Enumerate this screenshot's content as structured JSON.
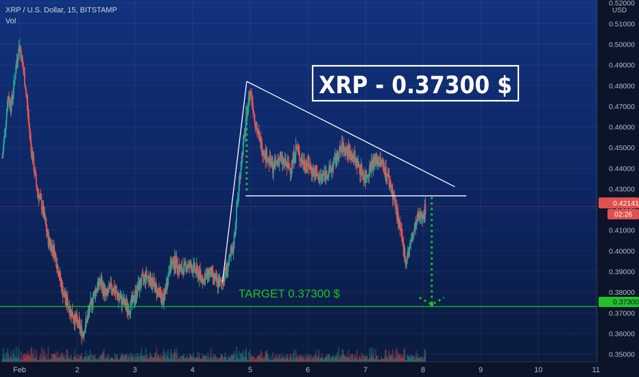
{
  "header": {
    "symbol_line": "XRP / U.S. Dollar, 15, BITSTAMP",
    "volume_label": "Vol"
  },
  "currency": "USD",
  "title_box": "XRP - 0.37300 $",
  "target_label": "TARGET 0.37300 $",
  "price_marker": {
    "value": "0.42141",
    "countdown": "02:26",
    "color": "#e0514e"
  },
  "target_marker": {
    "value": "0.37300",
    "color": "#22c02a"
  },
  "colors": {
    "up": "#26a69a",
    "down": "#ef5350",
    "target": "#22c02a",
    "annotation": "#ffffff"
  },
  "chart_data": {
    "type": "candlestick",
    "symbol": "XRP / U.S. Dollar",
    "interval": "15",
    "exchange": "BITSTAMP",
    "x_ticks": [
      "Feb",
      "2",
      "3",
      "4",
      "5",
      "6",
      "7",
      "8",
      "9",
      "10",
      "11"
    ],
    "y_ticks": [
      "0.35000",
      "0.36000",
      "0.37000",
      "0.38000",
      "0.39000",
      "0.40000",
      "0.41000",
      "0.42000",
      "0.43000",
      "0.44000",
      "0.45000",
      "0.46000",
      "0.47000",
      "0.48000",
      "0.49000",
      "0.50000",
      "0.51000",
      "0.52000"
    ],
    "ylim": [
      0.3462,
      0.5214
    ],
    "xlim_days": [
      0.66,
      11.02
    ],
    "current_price": 0.42141,
    "target_price": 0.373,
    "price_path": [
      [
        0.7,
        0.445
      ],
      [
        0.75,
        0.46
      ],
      [
        0.8,
        0.475
      ],
      [
        0.85,
        0.47
      ],
      [
        0.9,
        0.48
      ],
      [
        0.95,
        0.492
      ],
      [
        1.0,
        0.5
      ],
      [
        1.1,
        0.48
      ],
      [
        1.2,
        0.45
      ],
      [
        1.3,
        0.43
      ],
      [
        1.4,
        0.42
      ],
      [
        1.5,
        0.405
      ],
      [
        1.6,
        0.4
      ],
      [
        1.75,
        0.38
      ],
      [
        1.9,
        0.37
      ],
      [
        2.0,
        0.365
      ],
      [
        2.1,
        0.36
      ],
      [
        2.2,
        0.37
      ],
      [
        2.3,
        0.38
      ],
      [
        2.4,
        0.385
      ],
      [
        2.5,
        0.378
      ],
      [
        2.6,
        0.383
      ],
      [
        2.7,
        0.378
      ],
      [
        2.8,
        0.375
      ],
      [
        2.9,
        0.372
      ],
      [
        3.0,
        0.378
      ],
      [
        3.1,
        0.385
      ],
      [
        3.2,
        0.388
      ],
      [
        3.3,
        0.385
      ],
      [
        3.4,
        0.38
      ],
      [
        3.5,
        0.376
      ],
      [
        3.6,
        0.392
      ],
      [
        3.7,
        0.395
      ],
      [
        3.8,
        0.39
      ],
      [
        3.9,
        0.393
      ],
      [
        4.0,
        0.392
      ],
      [
        4.1,
        0.389
      ],
      [
        4.2,
        0.386
      ],
      [
        4.3,
        0.39
      ],
      [
        4.4,
        0.385
      ],
      [
        4.5,
        0.384
      ],
      [
        4.6,
        0.392
      ],
      [
        4.7,
        0.4
      ],
      [
        4.75,
        0.415
      ],
      [
        4.8,
        0.43
      ],
      [
        4.85,
        0.445
      ],
      [
        4.9,
        0.455
      ],
      [
        4.95,
        0.468
      ],
      [
        5.0,
        0.478
      ],
      [
        5.05,
        0.47
      ],
      [
        5.1,
        0.46
      ],
      [
        5.2,
        0.45
      ],
      [
        5.3,
        0.445
      ],
      [
        5.4,
        0.44
      ],
      [
        5.5,
        0.445
      ],
      [
        5.6,
        0.442
      ],
      [
        5.7,
        0.44
      ],
      [
        5.8,
        0.45
      ],
      [
        5.9,
        0.443
      ],
      [
        6.0,
        0.442
      ],
      [
        6.1,
        0.438
      ],
      [
        6.2,
        0.435
      ],
      [
        6.3,
        0.437
      ],
      [
        6.4,
        0.439
      ],
      [
        6.5,
        0.445
      ],
      [
        6.6,
        0.45
      ],
      [
        6.7,
        0.448
      ],
      [
        6.8,
        0.445
      ],
      [
        6.9,
        0.44
      ],
      [
        7.0,
        0.435
      ],
      [
        7.1,
        0.442
      ],
      [
        7.2,
        0.444
      ],
      [
        7.3,
        0.442
      ],
      [
        7.4,
        0.435
      ],
      [
        7.5,
        0.425
      ],
      [
        7.6,
        0.41
      ],
      [
        7.7,
        0.395
      ],
      [
        7.8,
        0.405
      ],
      [
        7.9,
        0.415
      ],
      [
        8.0,
        0.418
      ],
      [
        8.05,
        0.421
      ]
    ],
    "annotations": {
      "triangle_peak": [
        4.94,
        0.482
      ],
      "triangle_upper_end": [
        8.55,
        0.431
      ],
      "triangle_left_base": [
        4.52,
        0.385
      ],
      "support_line": {
        "price": 0.4266,
        "x_range": [
          4.92,
          8.75
        ]
      },
      "projection_arrow": {
        "x": 8.15,
        "from": 0.426,
        "to": 0.374
      },
      "arrow_left_label_x": 4.94
    }
  }
}
